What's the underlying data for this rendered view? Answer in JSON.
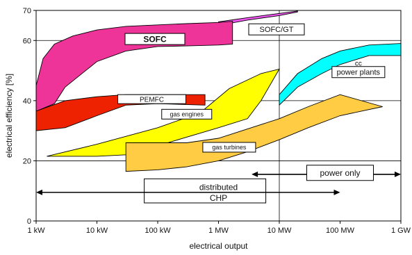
{
  "chart_data": {
    "type": "area",
    "title": "",
    "xlabel": "electrical output",
    "ylabel": "electrical efficiency [%]",
    "x_scale": "log",
    "x_ticks": [
      "1 kW",
      "10 kW",
      "100 kW",
      "1 MW",
      "10 MW",
      "100 MW",
      "1 GW"
    ],
    "x_tick_values_kw": [
      1,
      10,
      100,
      1000,
      10000,
      100000,
      1000000
    ],
    "y_ticks": [
      "0",
      "20",
      "40",
      "60",
      "70"
    ],
    "y_tick_values": [
      0,
      20,
      40,
      60,
      70
    ],
    "ylim": [
      0,
      70
    ],
    "grid_lines_y": [
      20,
      40,
      60
    ],
    "grid_lines_x_kw": [
      10000
    ],
    "regions": [
      {
        "name": "SOFC/GT",
        "color": "#ee55ee",
        "upper": [
          [
            1000,
            65
          ],
          [
            3000,
            66.8
          ],
          [
            10000,
            68.3
          ],
          [
            20000,
            69.5
          ]
        ],
        "lower": [
          [
            20000,
            69.8
          ],
          [
            10000,
            69
          ],
          [
            3000,
            67.6
          ],
          [
            1000,
            66.2
          ]
        ]
      },
      {
        "name": "SOFC",
        "color": "#ee3399",
        "upper": [
          [
            1,
            45
          ],
          [
            1.3,
            54
          ],
          [
            2,
            58.8
          ],
          [
            4,
            61.5
          ],
          [
            10,
            63.5
          ],
          [
            30,
            64.7
          ],
          [
            100,
            65.2
          ],
          [
            300,
            65.6
          ],
          [
            1000,
            66
          ],
          [
            1700,
            66.4
          ]
        ],
        "lower": [
          [
            1700,
            58.8
          ],
          [
            1000,
            58.5
          ],
          [
            300,
            58.2
          ],
          [
            100,
            58
          ],
          [
            30,
            56.5
          ],
          [
            10,
            53
          ],
          [
            3,
            44.5
          ],
          [
            2,
            39
          ],
          [
            1,
            36.5
          ]
        ]
      },
      {
        "name": "PEMFC",
        "color": "#ee2200",
        "upper": [
          [
            1,
            36.5
          ],
          [
            3,
            40
          ],
          [
            10,
            41.3
          ],
          [
            30,
            42
          ],
          [
            100,
            42
          ],
          [
            600,
            42
          ]
        ],
        "lower": [
          [
            600,
            38.5
          ],
          [
            100,
            39
          ],
          [
            30,
            38.5
          ],
          [
            10,
            35
          ],
          [
            3,
            31
          ],
          [
            1,
            30
          ]
        ]
      },
      {
        "name": "gas engines",
        "color": "#ffff00",
        "upper": [
          [
            1.5,
            21.5
          ],
          [
            10,
            25.5
          ],
          [
            100,
            31
          ],
          [
            500,
            36
          ],
          [
            1500,
            44
          ],
          [
            5000,
            49
          ],
          [
            10000,
            50.5
          ]
        ],
        "lower": [
          [
            10000,
            50.5
          ],
          [
            5000,
            40
          ],
          [
            3000,
            34
          ],
          [
            1000,
            31
          ],
          [
            100,
            25
          ],
          [
            30,
            22
          ],
          [
            10,
            21.5
          ],
          [
            1.5,
            21.5
          ]
        ]
      },
      {
        "name": "gas turbines",
        "color": "#ffcc44",
        "upper": [
          [
            30,
            26
          ],
          [
            100,
            26
          ],
          [
            300,
            26
          ],
          [
            1000,
            27.5
          ],
          [
            10000,
            34
          ],
          [
            30000,
            38
          ],
          [
            100000,
            42
          ],
          [
            500000,
            38
          ]
        ],
        "lower": [
          [
            500000,
            38
          ],
          [
            100000,
            35
          ],
          [
            30000,
            31
          ],
          [
            10000,
            27
          ],
          [
            3000,
            23
          ],
          [
            1000,
            20
          ],
          [
            300,
            18
          ],
          [
            100,
            17
          ],
          [
            30,
            16.5
          ]
        ]
      },
      {
        "name": "cc power plants",
        "color": "#00ffff",
        "upper": [
          [
            10000,
            42
          ],
          [
            20000,
            49
          ],
          [
            50000,
            54
          ],
          [
            100000,
            56.5
          ],
          [
            300000,
            58.5
          ],
          [
            1000000,
            59
          ]
        ],
        "lower": [
          [
            1000000,
            55
          ],
          [
            300000,
            55
          ],
          [
            100000,
            52
          ],
          [
            50000,
            49
          ],
          [
            20000,
            44.5
          ],
          [
            10000,
            38.5
          ]
        ]
      }
    ],
    "labels": [
      {
        "text": "SOFC",
        "boxed": true,
        "bold": true,
        "size": 12,
        "x_kw": 90,
        "y": 60.5,
        "w": 86,
        "h": 16
      },
      {
        "text": "SOFC/GT",
        "boxed": true,
        "bold": false,
        "size": 11,
        "x_kw": 9000,
        "y": 63.7,
        "w": 80,
        "h": 16
      },
      {
        "text": "PEMFC",
        "boxed": true,
        "bold": false,
        "size": 10,
        "x_kw": 80,
        "y": 40.5,
        "w": 98,
        "h": 13
      },
      {
        "text": "gas engines",
        "boxed": true,
        "bold": false,
        "size": 9,
        "x_kw": 300,
        "y": 35.5,
        "w": 72,
        "h": 14
      },
      {
        "text": "gas turbines",
        "boxed": true,
        "bold": false,
        "size": 9,
        "x_kw": 1500,
        "y": 24.5,
        "w": 76,
        "h": 14
      },
      {
        "text": "cc",
        "boxed": false,
        "bold": false,
        "size": 10,
        "x_kw": 200000,
        "y": 52.5
      },
      {
        "text": "power plants",
        "boxed": true,
        "bold": false,
        "size": 11,
        "x_kw": 200000,
        "y": 49.5,
        "w": 76,
        "h": 16
      },
      {
        "text": "power only",
        "boxed": true,
        "bold": false,
        "size": 12,
        "x_kw": 100000,
        "y": 16,
        "w": 96,
        "h": 22
      },
      {
        "text": "distributed",
        "boxed": false,
        "bold": false,
        "size": 12,
        "x_kw": 1000,
        "y": 11.3
      },
      {
        "text": "CHP",
        "boxed": false,
        "bold": false,
        "size": 12,
        "x_kw": 1000,
        "y": 7.7
      }
    ],
    "arrows": [
      {
        "name": "distributed-chp-arrow",
        "from_kw": 1,
        "to_kw": 100000,
        "y": 9.5
      },
      {
        "name": "power-only-arrow",
        "from_kw": 3500,
        "to_kw": 1000000,
        "y": 15.5
      }
    ],
    "box_groups": [
      {
        "name": "distributed-chp-box",
        "x1_kw": 60,
        "x2_kw": 6000,
        "y_top": 14,
        "y_bottom": 6
      }
    ]
  }
}
